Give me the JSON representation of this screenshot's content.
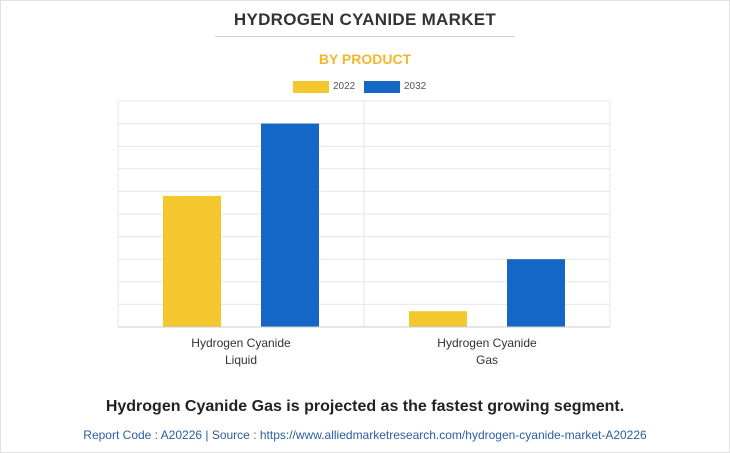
{
  "header": {
    "title": "HYDROGEN CYANIDE MARKET",
    "subtitle": "BY PRODUCT"
  },
  "colors": {
    "series_2022": "#f5c72f",
    "series_2032": "#1467c4",
    "subtitle": "#f2b731"
  },
  "chart_data": {
    "type": "bar",
    "title": "HYDROGEN CYANIDE MARKET",
    "subtitle": "BY PRODUCT",
    "categories": [
      "Hydrogen Cyanide\nLiquid",
      "Hydrogen Cyanide\nGas"
    ],
    "category_lines": [
      [
        "Hydrogen Cyanide",
        "Liquid"
      ],
      [
        "Hydrogen Cyanide",
        "Gas"
      ]
    ],
    "series": [
      {
        "name": "2022",
        "color": "#f5c72f",
        "values": [
          5.8,
          0.7
        ]
      },
      {
        "name": "2032",
        "color": "#1467c4",
        "values": [
          9.0,
          3.0
        ]
      }
    ],
    "ylim": [
      0,
      10
    ],
    "grid": true,
    "legend": "top-center",
    "xlabel": "",
    "ylabel": ""
  },
  "footer": {
    "headline": "Hydrogen Cyanide Gas is projected as the fastest growing segment.",
    "source": "Report Code : A20226  |  Source : https://www.alliedmarketresearch.com/hydrogen-cyanide-market-A20226"
  }
}
